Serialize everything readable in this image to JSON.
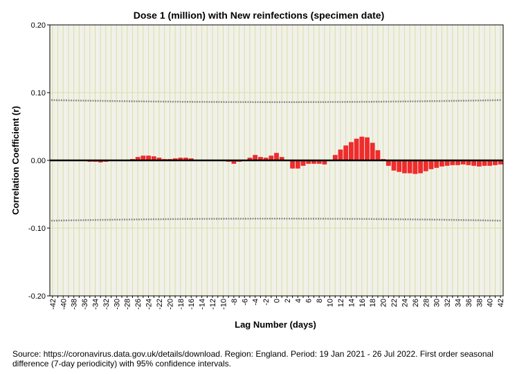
{
  "chart_data": {
    "type": "bar",
    "title": "Dose 1 (million) with New reinfections (specimen date)",
    "xlabel": "Lag Number (days)",
    "ylabel": "Correlation Coefficient (r)",
    "ylim": [
      -0.2,
      0.2
    ],
    "yticks": [
      0.2,
      0.1,
      0.0,
      -0.1,
      -0.2
    ],
    "ytick_labels": [
      "0.20",
      "0.10",
      "0.00",
      "-0.10",
      "-0.20"
    ],
    "x": [
      -42,
      -41,
      -40,
      -39,
      -38,
      -37,
      -36,
      -35,
      -34,
      -33,
      -32,
      -31,
      -30,
      -29,
      -28,
      -27,
      -26,
      -25,
      -24,
      -23,
      -22,
      -21,
      -20,
      -19,
      -18,
      -17,
      -16,
      -15,
      -14,
      -13,
      -12,
      -11,
      -10,
      -9,
      -8,
      -7,
      -6,
      -5,
      -4,
      -3,
      -2,
      -1,
      0,
      1,
      2,
      3,
      4,
      5,
      6,
      7,
      8,
      9,
      10,
      11,
      12,
      13,
      14,
      15,
      16,
      17,
      18,
      19,
      20,
      21,
      22,
      23,
      24,
      25,
      26,
      27,
      28,
      29,
      30,
      31,
      32,
      33,
      34,
      35,
      36,
      37,
      38,
      39,
      40,
      41,
      42
    ],
    "xtick_labels": [
      "-42",
      "-40",
      "-38",
      "-36",
      "-34",
      "-32",
      "-30",
      "-28",
      "-26",
      "-24",
      "-22",
      "-20",
      "-18",
      "-16",
      "-14",
      "-12",
      "-10",
      "-8",
      "-6",
      "-4",
      "-2",
      "0",
      "2",
      "4",
      "6",
      "8",
      "10",
      "12",
      "14",
      "16",
      "18",
      "20",
      "22",
      "24",
      "26",
      "28",
      "30",
      "32",
      "34",
      "36",
      "38",
      "40",
      "42"
    ],
    "series": [
      {
        "name": "Coefficient",
        "color": "#ee2c2c",
        "values": [
          -0.001,
          -0.001,
          -0.001,
          -0.001,
          -0.001,
          -0.001,
          -0.001,
          -0.002,
          -0.002,
          -0.003,
          -0.002,
          -0.001,
          -0.001,
          0.0,
          0.001,
          0.002,
          0.005,
          0.007,
          0.007,
          0.006,
          0.004,
          0.002,
          0.002,
          0.003,
          0.004,
          0.004,
          0.003,
          0.001,
          0.0,
          0.0,
          0.0,
          0.0,
          0.0,
          -0.002,
          -0.005,
          -0.002,
          0.001,
          0.004,
          0.008,
          0.005,
          0.004,
          0.007,
          0.011,
          0.005,
          0.0,
          -0.012,
          -0.012,
          -0.008,
          -0.005,
          -0.005,
          -0.005,
          -0.006,
          0.0,
          0.008,
          0.016,
          0.022,
          0.027,
          0.032,
          0.035,
          0.034,
          0.026,
          0.015,
          0.002,
          -0.008,
          -0.015,
          -0.017,
          -0.019,
          -0.019,
          -0.02,
          -0.019,
          -0.016,
          -0.013,
          -0.011,
          -0.009,
          -0.008,
          -0.007,
          -0.007,
          -0.006,
          -0.007,
          -0.008,
          -0.009,
          -0.008,
          -0.008,
          -0.007,
          -0.006
        ]
      }
    ],
    "confidence_interval": {
      "label": "95% confidence intervals",
      "upper_start": 0.089,
      "upper_end": 0.089,
      "upper_mid": 0.086,
      "lower_start": -0.089,
      "lower_end": -0.089,
      "lower_mid": -0.086
    },
    "grid": true
  },
  "source_note": "Source: https://coronavirus.data.gov.uk/details/download. Region: England. Period: 19 Jan 2021 - 26 Jul 2022. First order seasonal difference (7-day periodicity) with 95% confidence intervals.",
  "colors": {
    "plot_bg": "#f1f1ea",
    "gridline": "#d8dfa0",
    "ci_line": "#8c8c8c",
    "zero_line": "#000000"
  }
}
